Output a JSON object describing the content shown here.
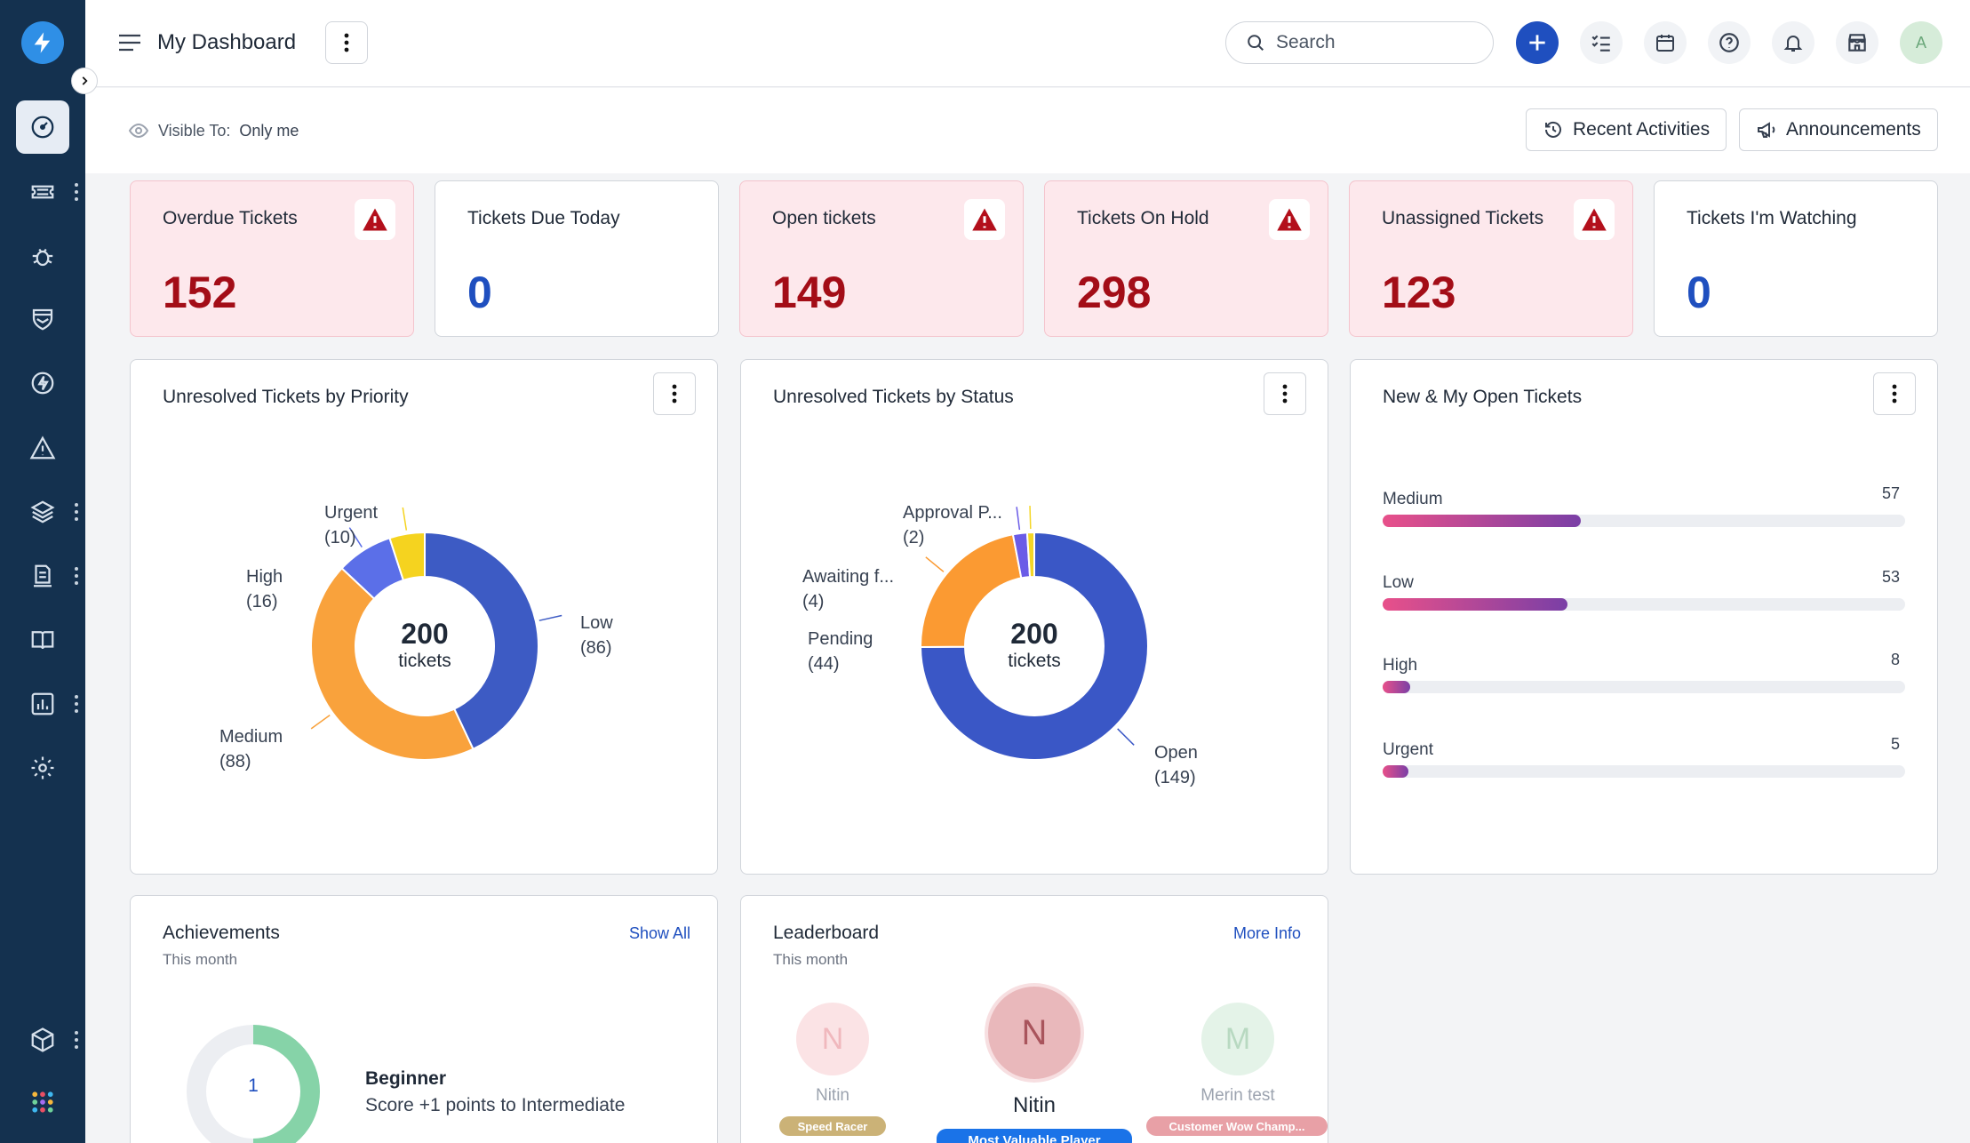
{
  "header": {
    "title": "My Dashboard",
    "search_placeholder": "Search",
    "avatar_initial": "A"
  },
  "subheader": {
    "visible_label": "Visible To:",
    "visible_value": "Only me",
    "recent_activities": "Recent Activities",
    "announcements": "Announcements"
  },
  "kpis": [
    {
      "title": "Overdue Tickets",
      "value": "152",
      "alert": true
    },
    {
      "title": "Tickets Due Today",
      "value": "0",
      "alert": false
    },
    {
      "title": "Open tickets",
      "value": "149",
      "alert": true
    },
    {
      "title": "Tickets On Hold",
      "value": "298",
      "alert": true
    },
    {
      "title": "Unassigned Tickets",
      "value": "123",
      "alert": true
    },
    {
      "title": "Tickets I'm Watching",
      "value": "0",
      "alert": false
    }
  ],
  "priority_chart": {
    "title": "Unresolved Tickets by Priority",
    "total": "200",
    "total_label": "tickets",
    "slices": [
      {
        "name": "Low",
        "value": 86,
        "display": "(86)",
        "color": "#3d5bc4"
      },
      {
        "name": "Medium",
        "value": 88,
        "display": "(88)",
        "color": "#f9a23c"
      },
      {
        "name": "High",
        "value": 16,
        "display": "(16)",
        "color": "#5b6fe8"
      },
      {
        "name": "Urgent",
        "value": 10,
        "display": "(10)",
        "color": "#f5d31f"
      }
    ]
  },
  "status_chart": {
    "title": "Unresolved Tickets by Status",
    "total": "200",
    "total_label": "tickets",
    "slices": [
      {
        "name": "Open",
        "value": 149,
        "display": "(149)",
        "color": "#3a57c6"
      },
      {
        "name": "Pending",
        "value": 44,
        "display": "(44)",
        "color": "#fb9a32"
      },
      {
        "name": "Awaiting f...",
        "value": 4,
        "display": "(4)",
        "color": "#6b5ce7"
      },
      {
        "name": "Approval P...",
        "value": 2,
        "display": "(2)",
        "color": "#f4d626"
      }
    ]
  },
  "open_tickets": {
    "title": "New & My Open Tickets",
    "max": 150,
    "rows": [
      {
        "label": "Medium",
        "value": 57
      },
      {
        "label": "Low",
        "value": 53
      },
      {
        "label": "High",
        "value": 8
      },
      {
        "label": "Urgent",
        "value": 5
      }
    ]
  },
  "achievements": {
    "title": "Achievements",
    "period": "This month",
    "link": "Show All",
    "level_number": "1",
    "level": "Beginner",
    "description": "Score +1 points to Intermediate",
    "progress": 0.5
  },
  "leaderboard": {
    "title": "Leaderboard",
    "period": "This month",
    "link": "More Info",
    "left": {
      "initial": "N",
      "name": "Nitin",
      "badge": "Speed Racer",
      "badge_color": "#cbb277"
    },
    "center": {
      "initial": "N",
      "name": "Nitin",
      "badge": "Most Valuable Player",
      "badge_color": "#1a73e8"
    },
    "right": {
      "initial": "M",
      "name": "Merin test",
      "badge": "Customer Wow Champ...",
      "badge_color": "#e8a0a6"
    }
  },
  "colors": {
    "sidebar": "#14314f",
    "primary": "#1f4fbf",
    "alert_bg": "#fde8ec",
    "alert_text": "#a30d17"
  }
}
